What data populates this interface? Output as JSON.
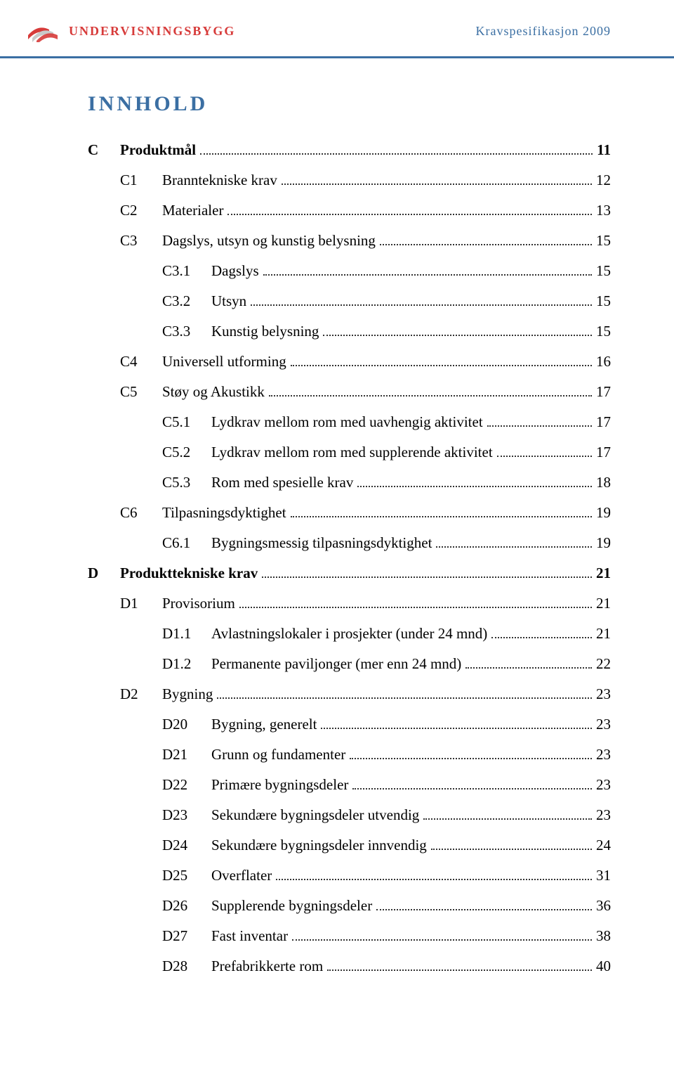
{
  "colors": {
    "brand_red": "#d73b3a",
    "accent_blue": "#3b6fa3",
    "text": "#222222",
    "dot": "#333333",
    "bg": "#ffffff"
  },
  "header": {
    "brand": "UNDERVISNINGSBYGG",
    "spec": "Kravspesifikasjon 2009"
  },
  "title": "INNHOLD",
  "toc": [
    {
      "code": "C",
      "label": "Produktmål",
      "page": "11",
      "level": 0,
      "bold": true
    },
    {
      "code": "C1",
      "label": "Branntekniske krav",
      "page": "12",
      "level": 1,
      "bold": false
    },
    {
      "code": "C2",
      "label": "Materialer",
      "page": "13",
      "level": 1,
      "bold": false
    },
    {
      "code": "C3",
      "label": "Dagslys, utsyn og kunstig belysning",
      "page": "15",
      "level": 1,
      "bold": false
    },
    {
      "code": "C3.1",
      "label": "Dagslys",
      "page": "15",
      "level": 2,
      "bold": false
    },
    {
      "code": "C3.2",
      "label": "Utsyn",
      "page": "15",
      "level": 2,
      "bold": false
    },
    {
      "code": "C3.3",
      "label": "Kunstig belysning",
      "page": "15",
      "level": 2,
      "bold": false
    },
    {
      "code": "C4",
      "label": "Universell utforming",
      "page": "16",
      "level": 1,
      "bold": false
    },
    {
      "code": "C5",
      "label": "Støy og Akustikk",
      "page": "17",
      "level": 1,
      "bold": false
    },
    {
      "code": "C5.1",
      "label": "Lydkrav mellom rom med uavhengig aktivitet",
      "page": "17",
      "level": 2,
      "bold": false
    },
    {
      "code": "C5.2",
      "label": "Lydkrav mellom rom med  supplerende aktivitet",
      "page": "17",
      "level": 2,
      "bold": false
    },
    {
      "code": "C5.3",
      "label": "Rom med spesielle krav",
      "page": "18",
      "level": 2,
      "bold": false
    },
    {
      "code": "C6",
      "label": "Tilpasningsdyktighet",
      "page": "19",
      "level": 1,
      "bold": false
    },
    {
      "code": "C6.1",
      "label": "Bygningsmessig tilpasningsdyktighet",
      "page": "19",
      "level": 2,
      "bold": false
    },
    {
      "code": "D",
      "label": "Produkttekniske krav",
      "page": "21",
      "level": 0,
      "bold": true
    },
    {
      "code": "D1",
      "label": "Provisorium",
      "page": "21",
      "level": 1,
      "bold": false
    },
    {
      "code": "D1.1",
      "label": "Avlastningslokaler i prosjekter (under 24 mnd)",
      "page": "21",
      "level": 2,
      "bold": false
    },
    {
      "code": "D1.2",
      "label": "Permanente paviljonger (mer enn 24 mnd)",
      "page": "22",
      "level": 2,
      "bold": false
    },
    {
      "code": "D2",
      "label": "Bygning",
      "page": "23",
      "level": 1,
      "bold": false
    },
    {
      "code": "D20",
      "label": "Bygning, generelt",
      "page": "23",
      "level": 2,
      "bold": false
    },
    {
      "code": "D21",
      "label": " Grunn og fundamenter",
      "page": "23",
      "level": 2,
      "bold": false
    },
    {
      "code": "D22",
      "label": "Primære bygningsdeler",
      "page": "23",
      "level": 2,
      "bold": false
    },
    {
      "code": "D23",
      "label": "Sekundære bygningsdeler utvendig",
      "page": "23",
      "level": 2,
      "bold": false
    },
    {
      "code": "D24",
      "label": "Sekundære bygningsdeler innvendig",
      "page": "24",
      "level": 2,
      "bold": false
    },
    {
      "code": "D25",
      "label": "Overflater",
      "page": "31",
      "level": 2,
      "bold": false
    },
    {
      "code": "D26",
      "label": "Supplerende bygningsdeler",
      "page": "36",
      "level": 2,
      "bold": false
    },
    {
      "code": "D27",
      "label": "Fast inventar",
      "page": "38",
      "level": 2,
      "bold": false
    },
    {
      "code": "D28",
      "label": "Prefabrikkerte rom",
      "page": "40",
      "level": 2,
      "bold": false
    }
  ]
}
